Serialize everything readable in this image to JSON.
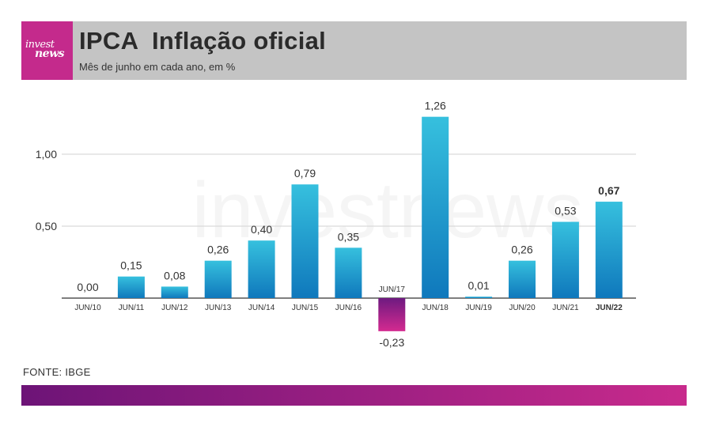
{
  "header": {
    "logo_line1": "invest",
    "logo_line2": "news",
    "title": "IPCA  Inflação oficial",
    "subtitle": "Mês de junho em cada ano, em %"
  },
  "source": "FONTE: IBGE",
  "colors": {
    "header_bg": "#c4c4c4",
    "logo_bg": "#c42a8c",
    "bar_positive_top": "#36c0de",
    "bar_positive_bottom": "#0f78bc",
    "bar_negative_top": "#6e1a80",
    "bar_negative_bottom": "#d42a90",
    "footer_left": "#6d1477",
    "footer_right": "#c82a8c"
  },
  "chart_data": {
    "type": "bar",
    "categories": [
      "JUN/10",
      "JUN/11",
      "JUN/12",
      "JUN/13",
      "JUN/14",
      "JUN/15",
      "JUN/16",
      "JUN/17",
      "JUN/18",
      "JUN/19",
      "JUN/20",
      "JUN/21",
      "JUN/22"
    ],
    "values": [
      0.0,
      0.15,
      0.08,
      0.26,
      0.4,
      0.79,
      0.35,
      -0.23,
      1.26,
      0.01,
      0.26,
      0.53,
      0.67
    ],
    "value_labels": [
      "0,00",
      "0,15",
      "0,08",
      "0,26",
      "0,40",
      "0,79",
      "0,35",
      "-0,23",
      "1,26",
      "0,01",
      "0,26",
      "0,53",
      "0,67"
    ],
    "highlight_index": 12,
    "yticks": [
      0.5,
      1.0
    ],
    "ytick_labels": [
      "0,50",
      "1,00"
    ],
    "ylim": [
      -0.23,
      1.26
    ],
    "grid": true,
    "watermark": "investnews"
  }
}
